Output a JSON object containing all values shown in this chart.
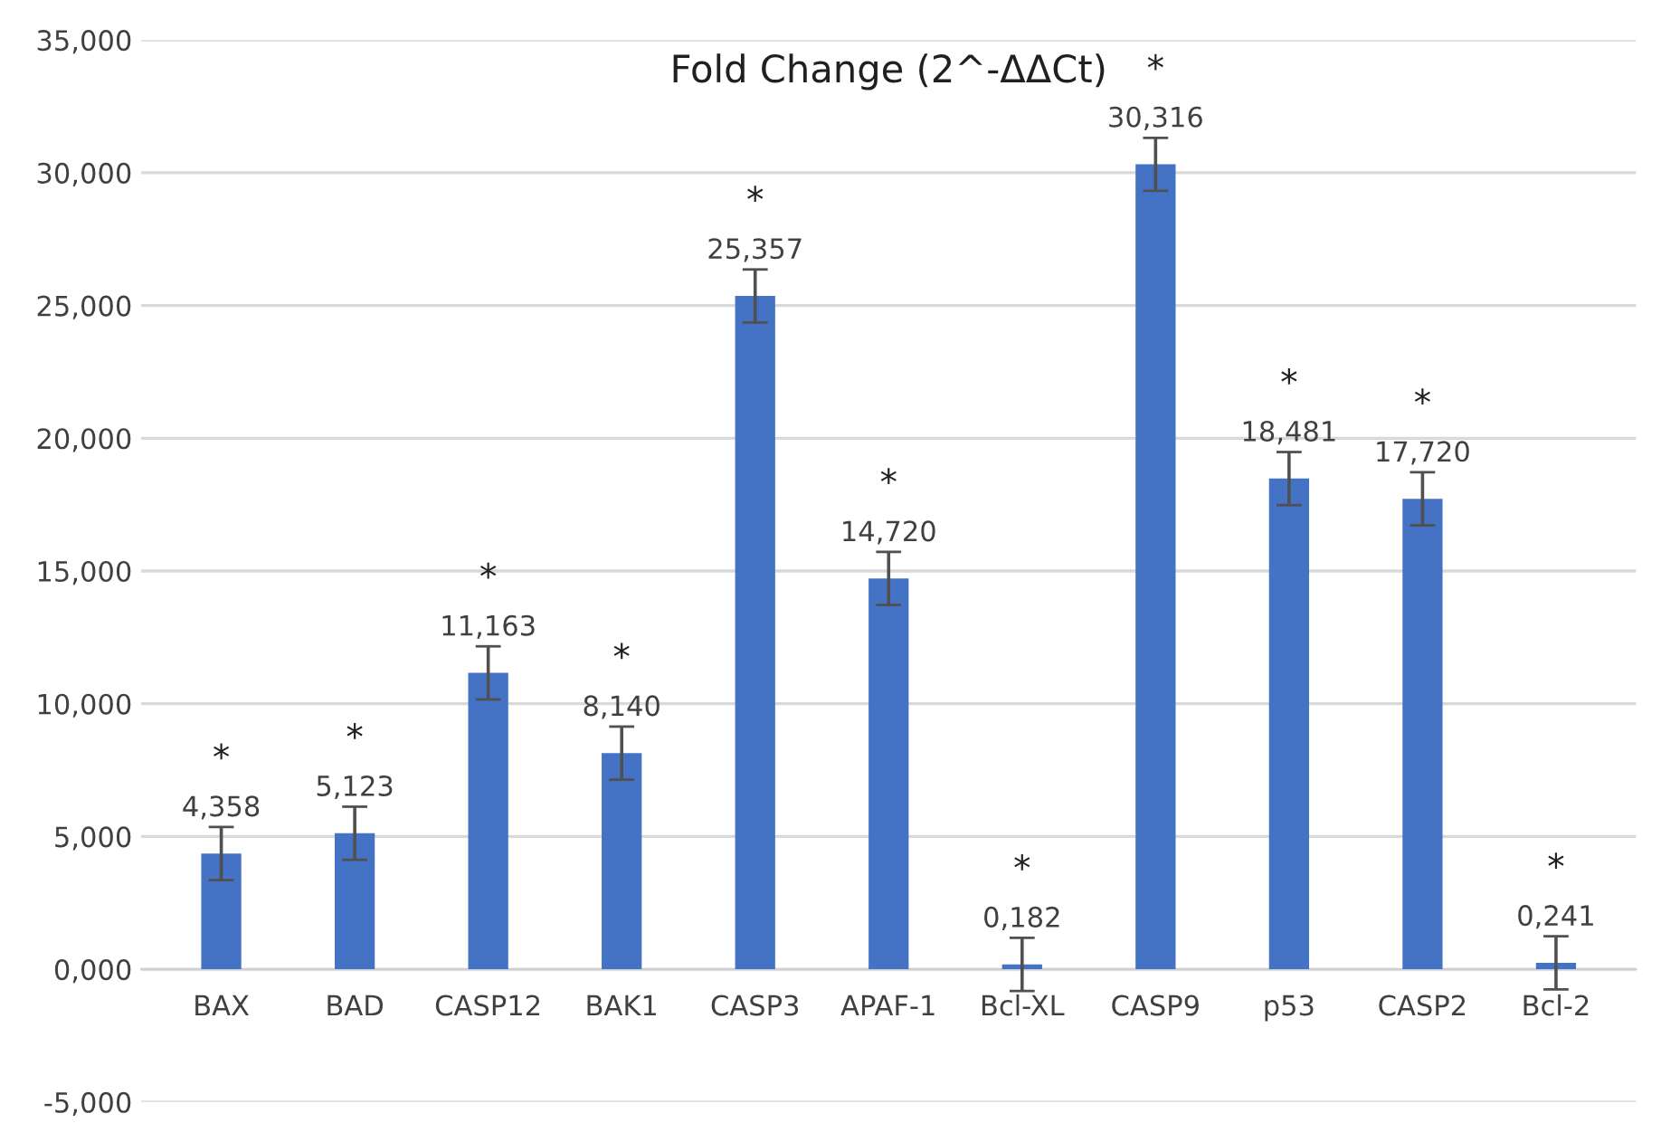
{
  "chart_data": {
    "type": "bar",
    "title": "Fold Change (2^-ΔΔCt)",
    "categories": [
      "BAX",
      "BAD",
      "CASP12",
      "BAK1",
      "CASP3",
      "APAF-1",
      "Bcl-XL",
      "CASP9",
      "p53",
      "CASP2",
      "Bcl-2"
    ],
    "values": [
      4.358,
      5.123,
      11.163,
      8.14,
      25.357,
      14.72,
      0.182,
      30.316,
      18.481,
      17.72,
      0.241
    ],
    "value_labels": [
      "4,358",
      "5,123",
      "11,163",
      "8,140",
      "25,357",
      "14,720",
      "0,182",
      "30,316",
      "18,481",
      "17,720",
      "0,241"
    ],
    "errors": [
      1.0,
      1.0,
      1.0,
      1.0,
      1.0,
      1.0,
      1.0,
      1.0,
      1.0,
      1.0,
      1.0
    ],
    "color": "#4472c4",
    "ylim": [
      -5,
      35
    ],
    "yticks": [
      {
        "value": -5,
        "label": "-5,000"
      },
      {
        "value": 0,
        "label": "0,000"
      },
      {
        "value": 5,
        "label": "5,000"
      },
      {
        "value": 10,
        "label": "10,000"
      },
      {
        "value": 15,
        "label": "15,000"
      },
      {
        "value": 20,
        "label": "20,000"
      },
      {
        "value": 25,
        "label": "25,000"
      },
      {
        "value": 30,
        "label": "30,000"
      },
      {
        "value": 35,
        "label": "35,000"
      }
    ],
    "grid": "y",
    "annotations": [
      "*",
      "*",
      "*",
      "*",
      "*",
      "*",
      "*",
      "*",
      "*",
      "*",
      "*"
    ]
  }
}
